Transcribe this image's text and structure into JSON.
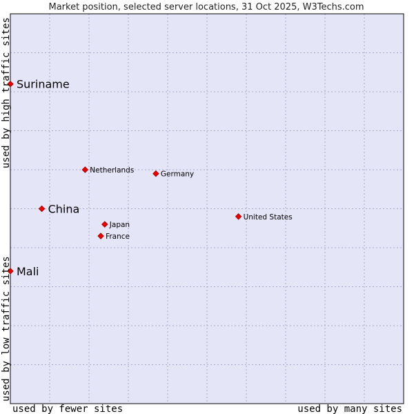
{
  "chart_data": {
    "type": "scatter",
    "title": "Market position, selected server locations, 31 Oct 2025, W3Techs.com",
    "xlabel_left": "used by fewer sites",
    "xlabel_right": "used by many sites",
    "ylabel_bottom": "used by low traffic sites",
    "ylabel_top": "used by high traffic sites",
    "xlim": [
      0,
      100
    ],
    "ylim": [
      0,
      100
    ],
    "grid": true,
    "colors": {
      "plot_bg": "#e5e5f8",
      "grid": "#a8a8c8",
      "border": "#000000",
      "marker": "#ee0000",
      "marker_edge": "#990000"
    },
    "points": [
      {
        "name": "Suriname",
        "x": 0,
        "y": 82,
        "highlight": true
      },
      {
        "name": "Netherlands",
        "x": 19,
        "y": 60,
        "highlight": false
      },
      {
        "name": "Germany",
        "x": 37,
        "y": 59,
        "highlight": false
      },
      {
        "name": "China",
        "x": 8,
        "y": 50,
        "highlight": true
      },
      {
        "name": "United States",
        "x": 58,
        "y": 48,
        "highlight": false
      },
      {
        "name": "Japan",
        "x": 24,
        "y": 46,
        "highlight": false
      },
      {
        "name": "France",
        "x": 23,
        "y": 43,
        "highlight": false
      },
      {
        "name": "Mali",
        "x": 0,
        "y": 34,
        "highlight": true
      }
    ]
  }
}
